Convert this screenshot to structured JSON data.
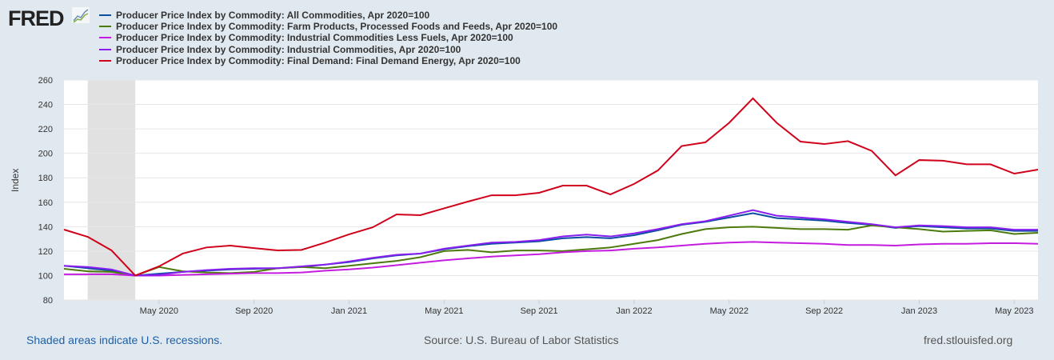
{
  "logo": "FRED",
  "chart_data": {
    "type": "line",
    "ylabel": "Index",
    "ylim": [
      80,
      260
    ],
    "yticks": [
      80,
      100,
      120,
      140,
      160,
      180,
      200,
      220,
      240,
      260
    ],
    "x_start": "Jan 2020",
    "x_end": "Jun 2023",
    "frequency": "monthly",
    "xticks": [
      {
        "label": "May 2020",
        "index": 4
      },
      {
        "label": "Sep 2020",
        "index": 8
      },
      {
        "label": "Jan 2021",
        "index": 12
      },
      {
        "label": "May 2021",
        "index": 16
      },
      {
        "label": "Sep 2021",
        "index": 20
      },
      {
        "label": "Jan 2022",
        "index": 24
      },
      {
        "label": "May 2022",
        "index": 28
      },
      {
        "label": "Sep 2022",
        "index": 32
      },
      {
        "label": "Jan 2023",
        "index": 36
      },
      {
        "label": "May 2023",
        "index": 40
      }
    ],
    "recession": {
      "start_index": 1,
      "end_index": 3
    },
    "series": [
      {
        "name": "Producer Price Index by Commodity: All Commodities, Apr 2020=100",
        "color": "#0b4ea2",
        "values": [
          108,
          106,
          104,
          100,
          101.5,
          103,
          104,
          105,
          105.5,
          106,
          107,
          109,
          111,
          114,
          116.5,
          118,
          121.5,
          124,
          126,
          127,
          128,
          130.5,
          131.5,
          130.5,
          133,
          137,
          141.5,
          144,
          147.5,
          151,
          147,
          146,
          145,
          143,
          141.5,
          139,
          140.5,
          139.5,
          138.5,
          138.5,
          136.5,
          136.5
        ]
      },
      {
        "name": "Producer Price Index by Commodity: Farm Products, Processed Foods and Feeds, Apr 2020=100",
        "color": "#4d7a0c",
        "values": [
          105.5,
          103.5,
          103,
          100,
          107,
          103.5,
          102.5,
          102,
          103,
          106,
          107,
          106,
          108,
          110,
          112,
          115,
          120,
          121,
          119,
          120.5,
          120.5,
          120,
          121.5,
          123,
          126,
          129,
          134,
          138,
          139.5,
          140,
          139,
          138,
          138,
          137.5,
          141,
          139.5,
          138,
          136,
          136.5,
          137,
          134,
          135
        ]
      },
      {
        "name": "Producer Price Index by Commodity: Industrial Commodities Less Fuels, Apr 2020=100",
        "color": "#c41de0",
        "values": [
          101,
          101,
          101,
          100,
          100,
          100.5,
          101,
          101.5,
          102,
          102,
          102.5,
          104,
          105,
          106.5,
          108.5,
          110.5,
          112.5,
          114,
          115.5,
          116.5,
          117.5,
          119,
          120,
          120.5,
          122,
          123,
          124.5,
          126,
          127,
          127.5,
          127,
          126.5,
          126,
          125,
          125,
          124.5,
          125.5,
          126,
          126,
          126.5,
          126.5,
          126
        ]
      },
      {
        "name": "Producer Price Index by Commodity: Industrial Commodities, Apr 2020=100",
        "color": "#8a1ef0",
        "values": [
          108,
          107,
          105,
          100,
          100.5,
          103,
          104.5,
          105.5,
          106,
          106,
          107.5,
          109,
          111.5,
          114.5,
          117,
          118,
          122,
          124.5,
          127,
          127.5,
          129,
          132,
          133.5,
          132,
          134.5,
          138,
          142,
          144.5,
          149,
          153.5,
          149,
          147.5,
          146,
          144,
          142,
          139.5,
          141,
          140.5,
          139.5,
          139.5,
          137.5,
          137.5
        ]
      },
      {
        "name": "Producer Price Index by Commodity: Final Demand: Final Demand Energy, Apr 2020=100",
        "color": "#d0021b",
        "values": [
          137.6,
          131.7,
          120.6,
          100,
          107.5,
          118,
          123,
          124.5,
          122.5,
          120.6,
          121,
          127,
          133.7,
          139.5,
          150,
          149.4,
          155,
          160.5,
          165.7,
          165.7,
          167.7,
          173.6,
          173.6,
          166.4,
          175,
          186,
          206,
          209,
          225,
          245,
          225,
          209.6,
          207.6,
          210,
          202,
          182,
          194.5,
          194,
          191,
          191,
          183.4,
          186.7
        ]
      }
    ]
  },
  "footer": {
    "recession_note": "Shaded areas indicate U.S. recessions.",
    "source": "Source: U.S. Bureau of Labor Statistics",
    "site": "fred.stlouisfed.org"
  }
}
